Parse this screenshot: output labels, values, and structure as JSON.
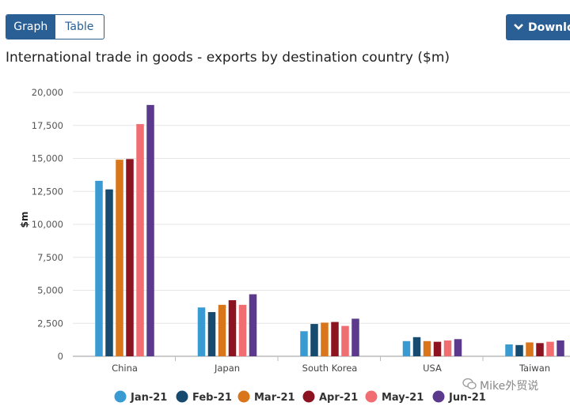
{
  "toggle": {
    "graph_label": "Graph",
    "table_label": "Table",
    "active": "graph"
  },
  "download": {
    "label": "Downlo",
    "icon": "chevron-down-icon"
  },
  "title": "International trade in goods - exports by destination country ($m)",
  "watermark": {
    "text": "Mike外贸说",
    "icon": "wechat-icon"
  },
  "colors": {
    "Jan-21": "#3a9bd3",
    "Feb-21": "#164a6e",
    "Mar-21": "#d9761b",
    "Apr-21": "#8b1420",
    "May-21": "#f06d72",
    "Jun-21": "#5b3a8e"
  },
  "chart_data": {
    "type": "bar",
    "title": "International trade in goods - exports by destination country ($m)",
    "xlabel": "",
    "ylabel": "$m",
    "ylim": [
      0,
      20000
    ],
    "yticks": [
      "0",
      "2,500",
      "5,000",
      "7,500",
      "10,000",
      "12,500",
      "15,000",
      "17,500",
      "20,000"
    ],
    "ytick_values": [
      0,
      2500,
      5000,
      7500,
      10000,
      12500,
      15000,
      17500,
      20000
    ],
    "grid": true,
    "legend_position": "bottom",
    "categories": [
      "China",
      "Japan",
      "South Korea",
      "USA",
      "Taiwan"
    ],
    "series": [
      {
        "name": "Jan-21",
        "values": [
          13300,
          3700,
          1900,
          1150,
          900
        ]
      },
      {
        "name": "Feb-21",
        "values": [
          12650,
          3350,
          2450,
          1450,
          850
        ]
      },
      {
        "name": "Mar-21",
        "values": [
          14900,
          3900,
          2550,
          1150,
          1050
        ]
      },
      {
        "name": "Apr-21",
        "values": [
          14950,
          4250,
          2600,
          1100,
          1000
        ]
      },
      {
        "name": "May-21",
        "values": [
          17600,
          3900,
          2300,
          1200,
          1100
        ]
      },
      {
        "name": "Jun-21",
        "values": [
          19050,
          4700,
          2850,
          1300,
          1200
        ]
      }
    ]
  }
}
